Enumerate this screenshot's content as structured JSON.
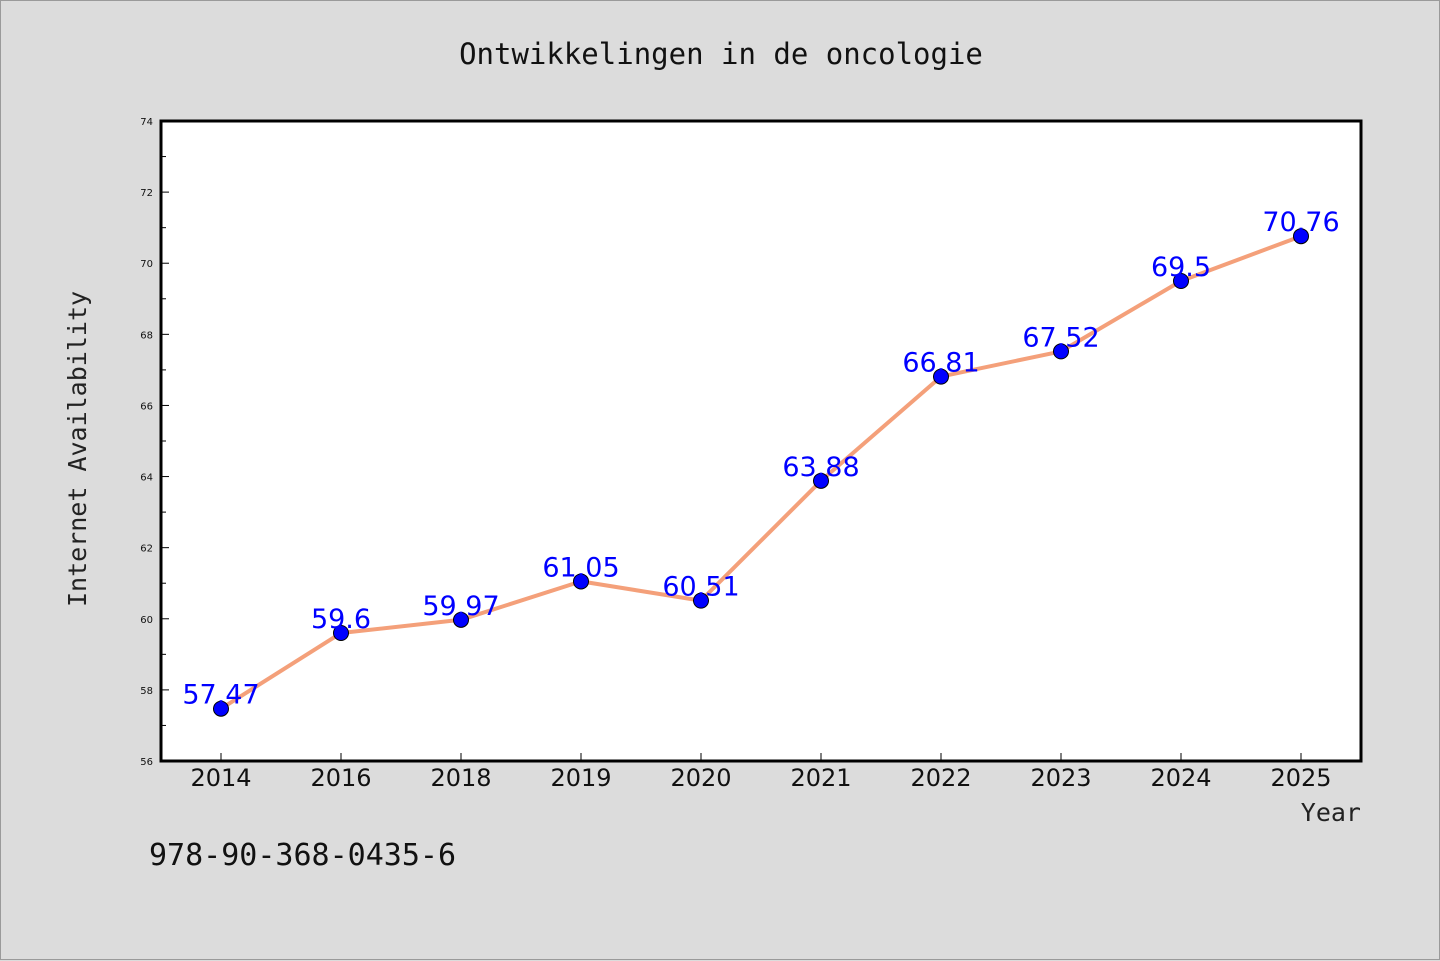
{
  "chart_data": {
    "type": "line",
    "title": "Ontwikkelingen in de oncologie",
    "xlabel": "Year",
    "ylabel": "Internet Availability",
    "categories": [
      "2014",
      "2016",
      "2018",
      "2019",
      "2020",
      "2021",
      "2022",
      "2023",
      "2024",
      "2025"
    ],
    "series": [
      {
        "values": [
          57.47,
          59.6,
          59.97,
          61.05,
          60.51,
          63.88,
          66.81,
          67.52,
          69.5,
          70.76
        ],
        "labels": [
          "57.47",
          "59.6",
          "59.97",
          "61.05",
          "60.51",
          "63.88",
          "66.81",
          "67.52",
          "69.5",
          "70.76"
        ],
        "line_color": "#f4a07a",
        "marker_color": "#0000ff"
      }
    ],
    "ylim": [
      56,
      74
    ],
    "yticks": [
      "56",
      "58",
      "60",
      "62",
      "64",
      "66",
      "68",
      "70",
      "72",
      "74"
    ],
    "grid": false,
    "legend": "none"
  },
  "footer": {
    "isbn": "978-90-368-0435-6"
  }
}
